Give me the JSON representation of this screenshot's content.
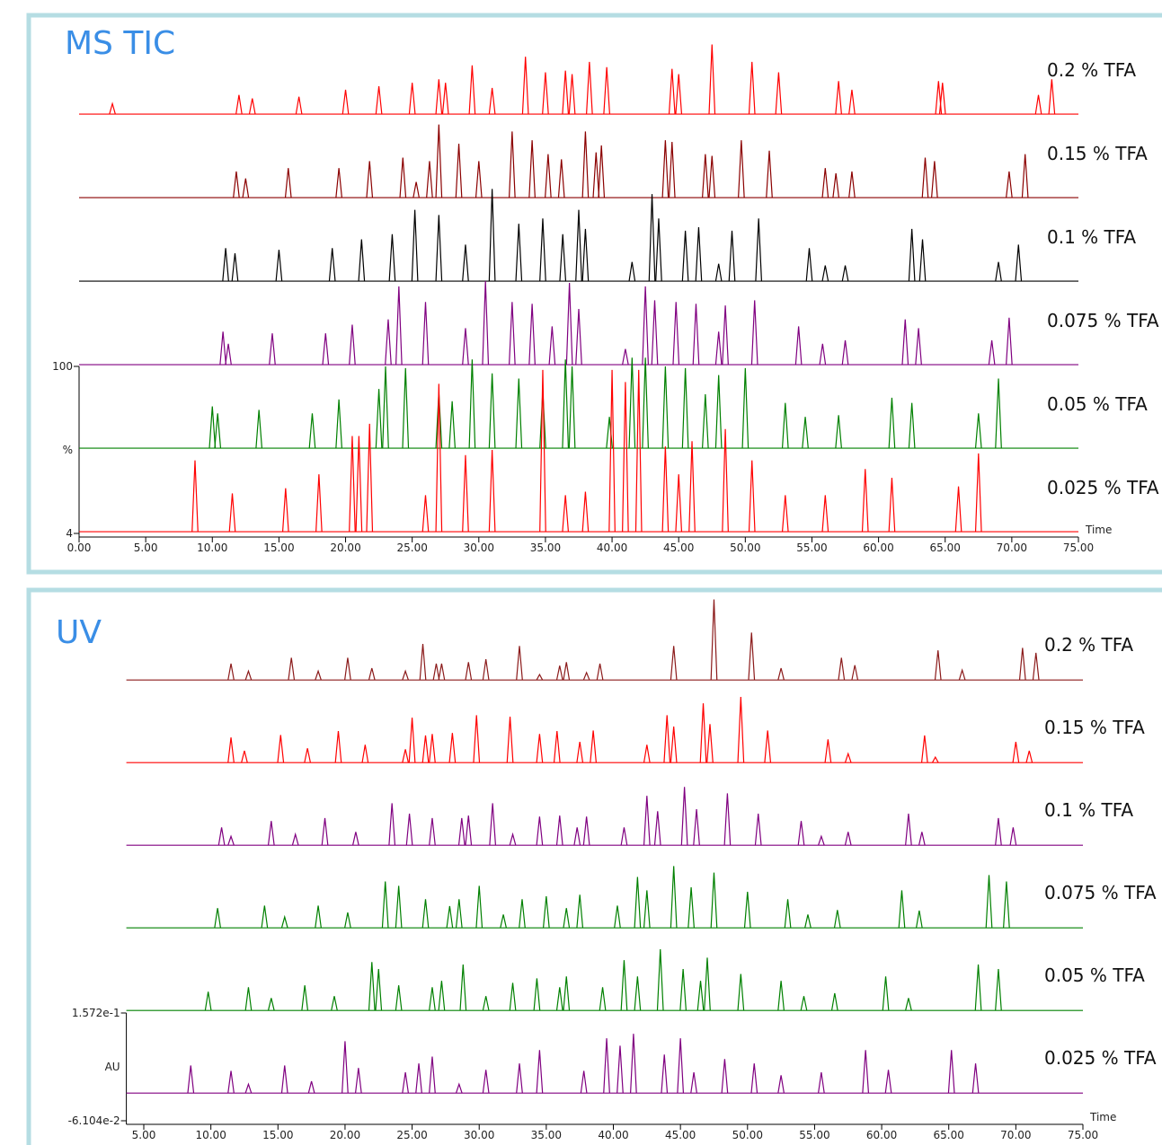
{
  "chart_data": [
    {
      "type": "line",
      "title": "MS TIC",
      "x_label": "Time",
      "y_label": "%",
      "xlim": [
        0,
        75
      ],
      "ylim": [
        4,
        100
      ],
      "baseline": 5,
      "xticks": [
        {
          "value": 0,
          "label": "0.00"
        },
        {
          "value": 5,
          "label": "5.00"
        },
        {
          "value": 10,
          "label": "10.00"
        },
        {
          "value": 15,
          "label": "15.00"
        },
        {
          "value": 20,
          "label": "20.00"
        },
        {
          "value": 25,
          "label": "25.00"
        },
        {
          "value": 30,
          "label": "30.00"
        },
        {
          "value": 35,
          "label": "35.00"
        },
        {
          "value": 40,
          "label": "40.00"
        },
        {
          "value": 45,
          "label": "45.00"
        },
        {
          "value": 50,
          "label": "50.00"
        },
        {
          "value": 55,
          "label": "55.00"
        },
        {
          "value": 60,
          "label": "60.00"
        },
        {
          "value": 65,
          "label": "65.00"
        },
        {
          "value": 70,
          "label": "70.00"
        },
        {
          "value": 75,
          "label": "75.00"
        }
      ],
      "yticks": [
        4,
        100
      ],
      "series": [
        {
          "name": "0.2 % TFA",
          "color": "#ff0000",
          "x": [
            2.5,
            12,
            13,
            16.5,
            20,
            22.5,
            25,
            27,
            27.5,
            29.5,
            31,
            33.5,
            35,
            36.5,
            37,
            38.3,
            39.6,
            44.5,
            45,
            47.5,
            50.5,
            52.5,
            57,
            58,
            64.5,
            64.8,
            72,
            73
          ],
          "values": [
            11,
            16,
            14,
            15,
            19,
            21,
            23,
            25,
            23,
            33,
            20,
            38,
            29,
            30,
            28,
            35,
            32,
            31,
            28,
            45,
            35,
            29,
            24,
            19,
            24,
            23,
            16,
            25
          ]
        },
        {
          "name": "0.15 % TFA",
          "color": "#8b0000",
          "x": [
            11.8,
            12.5,
            15.7,
            19.5,
            21.8,
            24.3,
            25.3,
            26.3,
            27,
            28.5,
            30,
            32.5,
            34,
            35.2,
            36.2,
            38,
            38.8,
            39.2,
            44,
            44.5,
            47,
            47.5,
            49.7,
            51.8,
            56,
            56.8,
            58,
            63.5,
            64.2,
            69.8,
            71
          ],
          "values": [
            20,
            16,
            22,
            22,
            26,
            28,
            14,
            26,
            47,
            36,
            26,
            43,
            38,
            30,
            27,
            43,
            31,
            35,
            38,
            37,
            30,
            29,
            38,
            32,
            22,
            19,
            20,
            28,
            26,
            20,
            30
          ]
        },
        {
          "name": "0.1 % TFA",
          "color": "#000000",
          "x": [
            11,
            11.7,
            15,
            19,
            21.2,
            23.5,
            25.2,
            27,
            29,
            31,
            33,
            34.8,
            36.3,
            37.5,
            38,
            41.5,
            43,
            43.5,
            45.5,
            46.5,
            48,
            49,
            51,
            54.8,
            56,
            57.5,
            62.5,
            63.3,
            69,
            70.5
          ],
          "values": [
            24,
            21,
            23,
            24,
            29,
            32,
            46,
            43,
            26,
            58,
            38,
            41,
            32,
            46,
            35,
            16,
            55,
            41,
            34,
            36,
            15,
            34,
            41,
            24,
            14,
            14,
            35,
            29,
            16,
            26
          ]
        },
        {
          "name": "0.075 % TFA",
          "color": "#800080",
          "x": [
            10.8,
            11.2,
            14.5,
            18.5,
            20.5,
            23.2,
            24,
            26,
            29,
            30.5,
            32.5,
            34,
            35.5,
            36.8,
            37.5,
            41,
            42.5,
            43.2,
            44.8,
            46.3,
            48,
            48.5,
            50.7,
            54,
            55.8,
            57.5,
            62,
            63,
            68.5,
            69.8
          ],
          "values": [
            24,
            17,
            23,
            23,
            28,
            31,
            50,
            41,
            26,
            53,
            41,
            40,
            27,
            52,
            37,
            14,
            50,
            42,
            41,
            40,
            24,
            39,
            42,
            27,
            17,
            19,
            31,
            26,
            19,
            32
          ]
        },
        {
          "name": "0.05 % TFA",
          "color": "#008000",
          "x": [
            10,
            10.4,
            13.5,
            17.5,
            19.5,
            22.5,
            23,
            24.5,
            27,
            28,
            29.5,
            31,
            33,
            34.8,
            36.5,
            37,
            39.8,
            41.5,
            42.5,
            44,
            45.5,
            47,
            48,
            50,
            53,
            54.5,
            57,
            61,
            62.5,
            67.5,
            69
          ],
          "values": [
            29,
            25,
            27,
            25,
            33,
            39,
            52,
            51,
            37,
            32,
            56,
            48,
            45,
            38,
            56,
            52,
            23,
            57,
            57,
            52,
            51,
            36,
            47,
            51,
            31,
            23,
            24,
            34,
            31,
            25,
            45
          ]
        },
        {
          "name": "0.025 % TFA",
          "color": "#ff0000",
          "x": [
            8.7,
            11.5,
            15.5,
            18,
            20.5,
            21,
            21.8,
            26,
            27,
            29,
            31,
            34.8,
            36.5,
            38,
            40,
            41,
            42,
            44,
            45,
            46,
            48.5,
            50.5,
            53,
            56,
            59,
            61,
            66,
            67.5
          ],
          "values": [
            46,
            27,
            30,
            38,
            60,
            60,
            67,
            26,
            90,
            49,
            52,
            98,
            26,
            28,
            98,
            91,
            98,
            54,
            38,
            57,
            64,
            46,
            26,
            26,
            41,
            36,
            31,
            50
          ]
        }
      ]
    },
    {
      "type": "line",
      "title": "UV",
      "x_label": "Time",
      "y_label": "AU",
      "xlim": [
        3.7,
        75
      ],
      "ylim": [
        -0.06104,
        0.1572
      ],
      "baseline": -0.005,
      "xticks": [
        {
          "value": 5,
          "label": "5.00"
        },
        {
          "value": 10,
          "label": "10.00"
        },
        {
          "value": 15,
          "label": "15.00"
        },
        {
          "value": 20,
          "label": "20.00"
        },
        {
          "value": 25,
          "label": "25.00"
        },
        {
          "value": 30,
          "label": "30.00"
        },
        {
          "value": 35,
          "label": "35.00"
        },
        {
          "value": 40,
          "label": "40.00"
        },
        {
          "value": 45,
          "label": "45.00"
        },
        {
          "value": 50,
          "label": "50.00"
        },
        {
          "value": 55,
          "label": "55.00"
        },
        {
          "value": 60,
          "label": "60.00"
        },
        {
          "value": 65,
          "label": "65.00"
        },
        {
          "value": 70,
          "label": "70.00"
        },
        {
          "value": 75,
          "label": "75.00"
        }
      ],
      "yticks": [
        {
          "value": 0.1572,
          "label": "1.572e-1"
        },
        {
          "value": -0.06104,
          "label": "-6.104e-2"
        }
      ],
      "series": [
        {
          "name": "0.2 % TFA",
          "color": "#8b1a1a",
          "x": [
            11.5,
            12.8,
            16,
            18,
            20.2,
            22,
            24.5,
            25.8,
            26.8,
            27.2,
            29.2,
            30.5,
            33,
            34.5,
            36,
            36.5,
            38,
            39,
            44.5,
            47.5,
            50.3,
            52.5,
            57,
            58,
            64.2,
            66,
            70.5,
            71.5
          ],
          "values": [
            0.028,
            0.013,
            0.04,
            0.013,
            0.04,
            0.019,
            0.013,
            0.068,
            0.028,
            0.028,
            0.031,
            0.037,
            0.064,
            0.006,
            0.024,
            0.031,
            0.01,
            0.028,
            0.064,
            0.158,
            0.091,
            0.019,
            0.04,
            0.025,
            0.055,
            0.015,
            0.06,
            0.05
          ]
        },
        {
          "name": "0.15 % TFA",
          "color": "#ff0000",
          "x": [
            11.5,
            12.5,
            15.2,
            17.2,
            19.5,
            21.5,
            24.5,
            25,
            26,
            26.5,
            28,
            29.8,
            32.3,
            34.5,
            35.8,
            37.5,
            38.5,
            42.5,
            44,
            44.5,
            46.7,
            47.2,
            49.5,
            51.5,
            56,
            57.5,
            63.2,
            64,
            70,
            71
          ],
          "values": [
            0.046,
            0.019,
            0.051,
            0.024,
            0.059,
            0.031,
            0.022,
            0.086,
            0.05,
            0.053,
            0.055,
            0.091,
            0.088,
            0.053,
            0.059,
            0.037,
            0.06,
            0.031,
            0.091,
            0.068,
            0.115,
            0.073,
            0.128,
            0.06,
            0.042,
            0.013,
            0.05,
            0.006,
            0.037,
            0.019
          ]
        },
        {
          "name": "0.1 % TFA",
          "color": "#800080",
          "x": [
            10.8,
            11.5,
            14.5,
            16.3,
            18.5,
            20.8,
            23.5,
            24.8,
            26.5,
            28.7,
            29.2,
            31,
            32.5,
            34.5,
            36,
            37.3,
            38,
            40.8,
            42.5,
            43.3,
            45.3,
            46.2,
            48.5,
            50.8,
            54,
            55.5,
            57.5,
            62,
            63,
            68.7,
            69.8
          ],
          "values": [
            0.031,
            0.013,
            0.044,
            0.017,
            0.05,
            0.022,
            0.08,
            0.059,
            0.05,
            0.05,
            0.055,
            0.08,
            0.017,
            0.053,
            0.055,
            0.031,
            0.053,
            0.031,
            0.095,
            0.064,
            0.113,
            0.068,
            0.1,
            0.059,
            0.044,
            0.013,
            0.022,
            0.059,
            0.022,
            0.05,
            0.031
          ]
        },
        {
          "name": "0.075 % TFA",
          "color": "#008000",
          "x": [
            10.5,
            14,
            15.5,
            18,
            20.2,
            23,
            24,
            26,
            27.8,
            28.5,
            30,
            31.8,
            33.2,
            35,
            36.5,
            37.5,
            40.3,
            41.8,
            42.5,
            44.5,
            45.8,
            47.5,
            50,
            53,
            54.5,
            56.7,
            61.5,
            62.8,
            68,
            69.3
          ],
          "values": [
            0.035,
            0.04,
            0.017,
            0.04,
            0.026,
            0.089,
            0.08,
            0.053,
            0.039,
            0.053,
            0.08,
            0.022,
            0.053,
            0.059,
            0.035,
            0.062,
            0.04,
            0.098,
            0.071,
            0.12,
            0.077,
            0.107,
            0.068,
            0.053,
            0.022,
            0.031,
            0.071,
            0.03,
            0.102,
            0.089
          ]
        },
        {
          "name": "0.05 % TFA",
          "color": "#008000",
          "x": [
            9.8,
            12.8,
            14.5,
            17,
            19.2,
            22,
            22.5,
            24,
            26.5,
            27.2,
            28.8,
            30.5,
            32.5,
            34.3,
            36,
            36.5,
            39.2,
            40.8,
            41.8,
            43.5,
            45.2,
            46.5,
            47,
            49.5,
            52.5,
            54.2,
            56.5,
            60.3,
            62,
            67.2,
            68.7
          ],
          "values": [
            0.033,
            0.042,
            0.02,
            0.046,
            0.024,
            0.093,
            0.079,
            0.046,
            0.042,
            0.055,
            0.088,
            0.024,
            0.051,
            0.06,
            0.042,
            0.064,
            0.042,
            0.097,
            0.064,
            0.119,
            0.079,
            0.055,
            0.102,
            0.069,
            0.055,
            0.024,
            0.03,
            0.064,
            0.02,
            0.088,
            0.079
          ]
        },
        {
          "name": "0.025 % TFA",
          "color": "#800080",
          "x": [
            8.5,
            11.5,
            12.8,
            15.5,
            17.5,
            20,
            21,
            24.5,
            25.5,
            26.5,
            28.5,
            30.5,
            33,
            34.5,
            37.8,
            39.5,
            40.5,
            41.5,
            43.8,
            45,
            46,
            48.3,
            50.5,
            52.5,
            55.5,
            58.8,
            60.5,
            65.2,
            67
          ],
          "values": [
            0.051,
            0.04,
            0.013,
            0.051,
            0.019,
            0.1,
            0.046,
            0.037,
            0.055,
            0.069,
            0.013,
            0.042,
            0.055,
            0.082,
            0.04,
            0.106,
            0.091,
            0.115,
            0.073,
            0.106,
            0.037,
            0.064,
            0.055,
            0.031,
            0.037,
            0.082,
            0.042,
            0.082,
            0.055
          ]
        }
      ]
    }
  ]
}
